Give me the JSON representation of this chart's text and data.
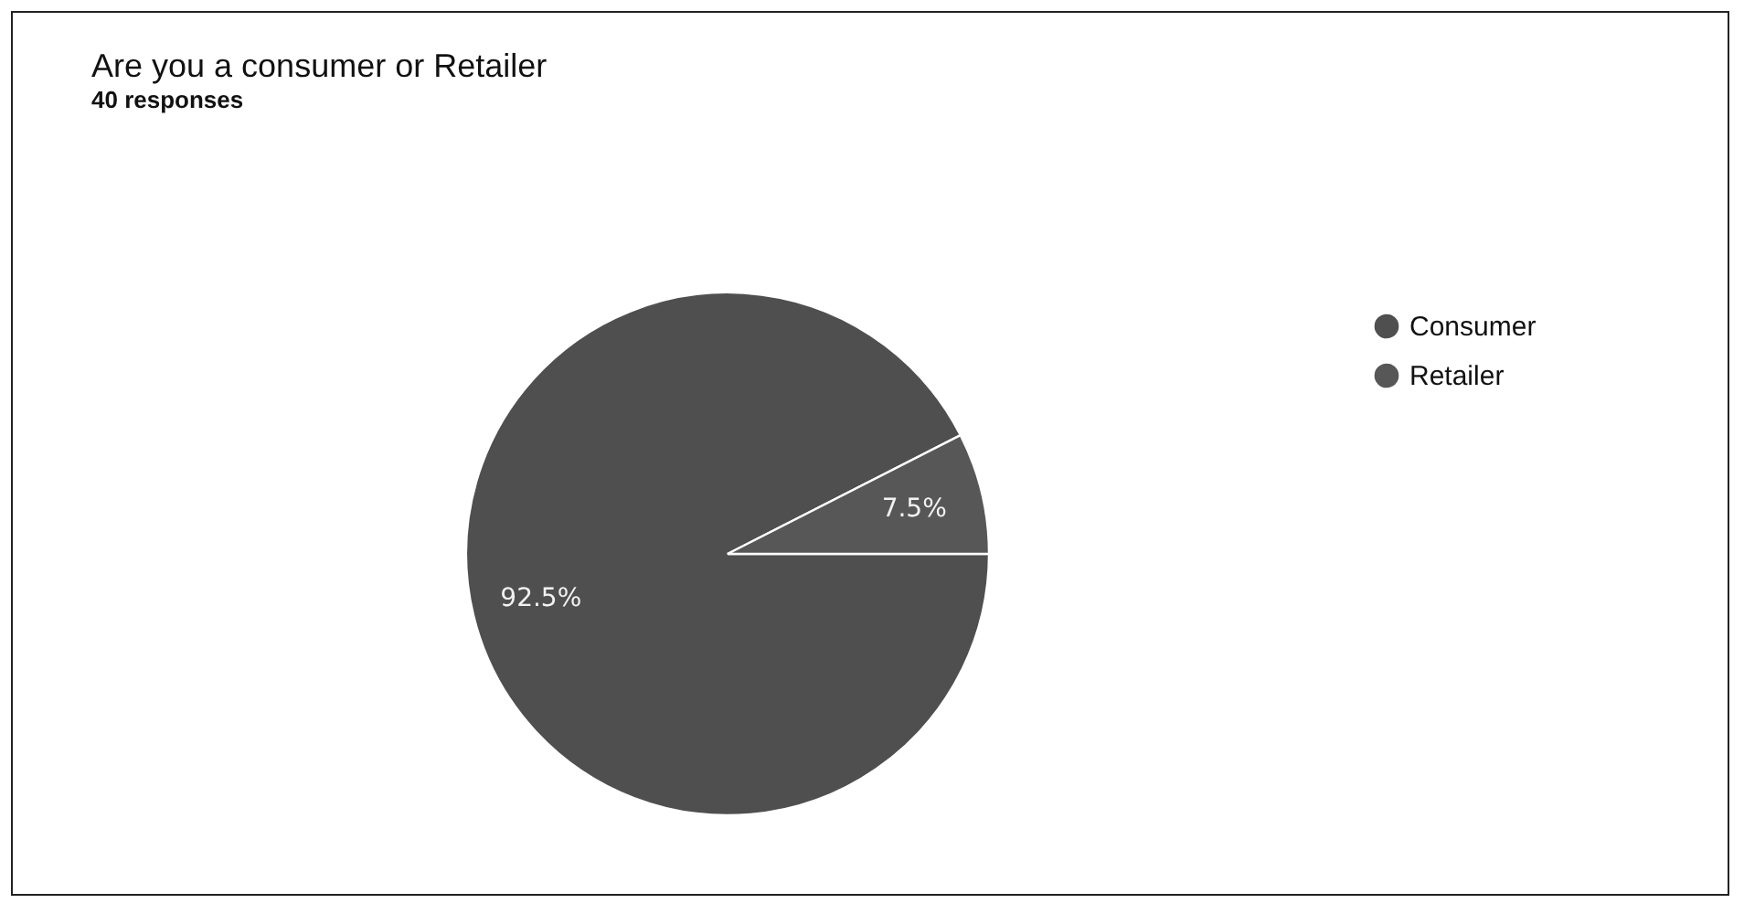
{
  "chart_data": {
    "type": "pie",
    "title": "Are you a consumer or Retailer",
    "subtitle": "40 responses",
    "categories": [
      "Consumer",
      "Retailer"
    ],
    "values": [
      92.5,
      7.5
    ],
    "value_labels": [
      "92.5%",
      "7.5%"
    ],
    "colors": [
      "#4f4f4f",
      "#575757"
    ],
    "legend": "right"
  }
}
